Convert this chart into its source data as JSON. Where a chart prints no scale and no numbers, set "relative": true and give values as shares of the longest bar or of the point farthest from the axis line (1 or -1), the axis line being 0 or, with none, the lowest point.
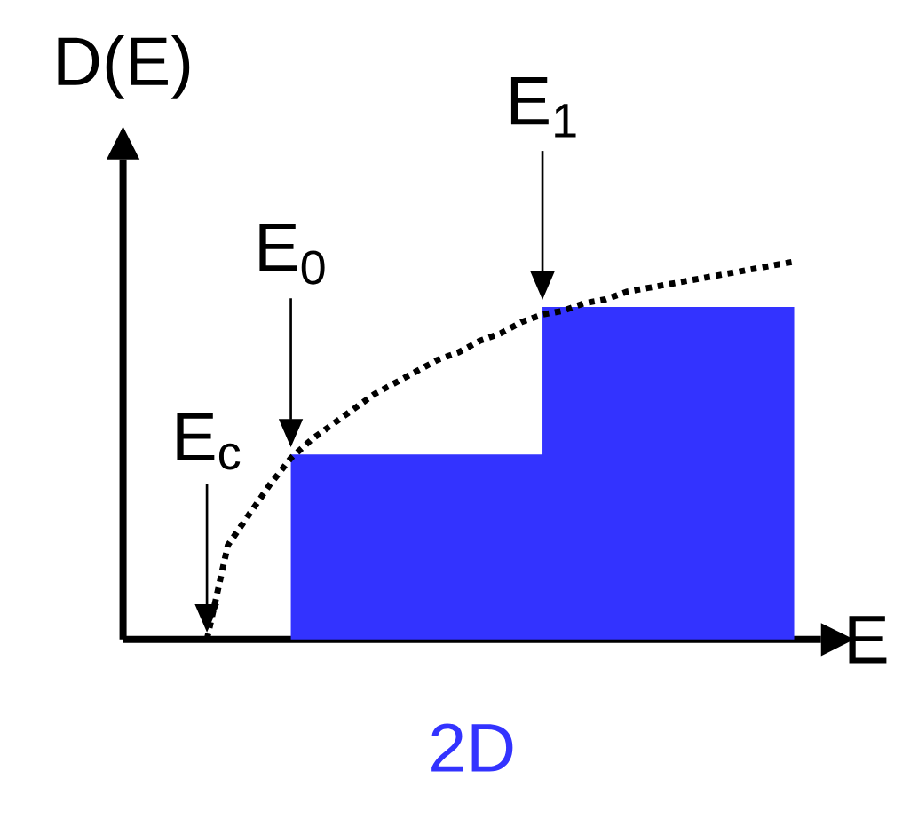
{
  "chart_data": {
    "type": "area",
    "relative": true,
    "title": "2D",
    "xlabel": "E",
    "ylabel": "D(E)",
    "annotations": [
      "E$_{c}$",
      "E$_{0}$",
      "E$_{1}$"
    ],
    "categories": [
      null,
      null,
      null,
      null,
      null,
      null,
      null,
      null,
      null,
      null,
      null,
      null,
      null,
      null,
      null,
      null,
      null,
      null,
      null,
      null,
      null,
      null,
      null,
      null,
      null,
      null,
      null,
      null,
      null,
      null,
      null,
      null,
      null
    ],
    "series": [
      {
        "color": "#3333ff",
        "values": [
          null,
          null,
          null,
          null,
          null,
          null,
          null,
          null,
          0.49,
          0.49,
          0.49,
          0.49,
          0.49,
          0.49,
          0.49,
          0.49,
          0.49,
          0.49,
          0.49,
          0.49,
          0.88,
          0.88,
          0.88,
          0.88,
          0.88,
          0.88,
          0.88,
          0.88,
          0.88,
          0.88,
          0.88,
          0.88,
          0.88
        ]
      },
      {
        "type": "line",
        "line_style": "dotted",
        "color": "#000000",
        "values": [
          null,
          null,
          null,
          null,
          0,
          0.25,
          0.33,
          0.41,
          0.48,
          0.53,
          0.57,
          0.61,
          0.65,
          0.68,
          0.71,
          0.74,
          0.76,
          0.79,
          0.81,
          0.84,
          0.86,
          0.87,
          0.89,
          0.9,
          0.92,
          0.93,
          0.94,
          0.95,
          0.96,
          0.97,
          0.98,
          0.99,
          1
        ]
      }
    ]
  }
}
